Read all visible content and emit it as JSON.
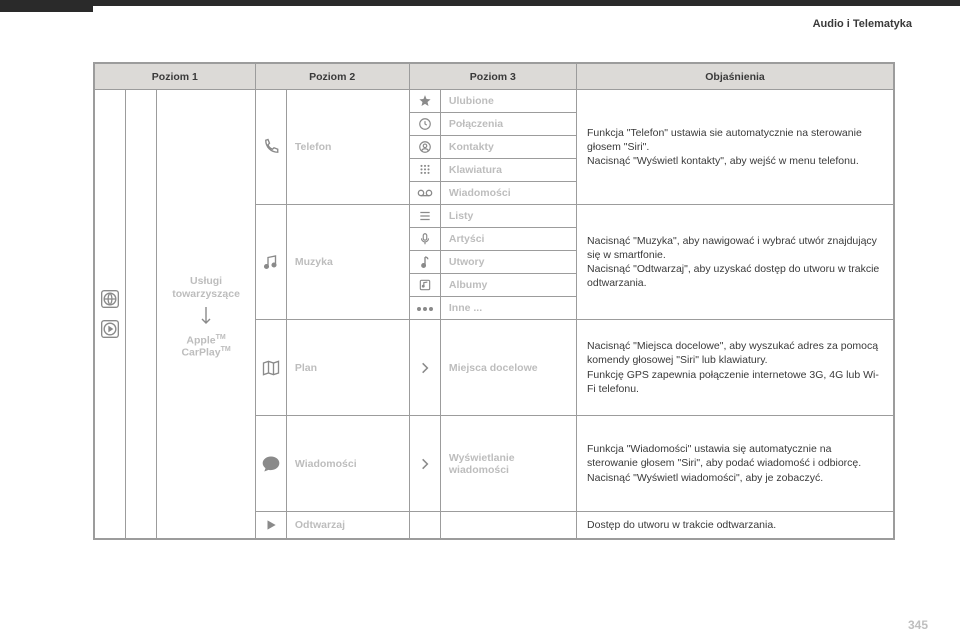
{
  "header": {
    "category": "Audio i Telematyka"
  },
  "columns": [
    "Poziom 1",
    "Poziom 2",
    "Poziom 3",
    "Objaśnienia"
  ],
  "level1": {
    "label_top": "Usługi towarzyszące",
    "label_bottom_pre": "Apple",
    "label_bottom_post": " CarPlay",
    "tm": "TM"
  },
  "sections": {
    "telefon": {
      "label": "Telefon",
      "items": [
        {
          "icon": "star",
          "label": "Ulubione"
        },
        {
          "icon": "clock",
          "label": "Połączenia"
        },
        {
          "icon": "contact",
          "label": "Kontakty"
        },
        {
          "icon": "keypad",
          "label": "Klawiatura"
        },
        {
          "icon": "tape",
          "label": "Wiadomości"
        }
      ],
      "desc": "Funkcja \"Telefon\" ustawia sie automatycznie na sterowanie głosem \"Siri\".\nNacisnąć \"Wyświetl kontakty\", aby wejść w menu telefonu."
    },
    "muzyka": {
      "label": "Muzyka",
      "items": [
        {
          "icon": "list",
          "label": "Listy"
        },
        {
          "icon": "mic",
          "label": "Artyści"
        },
        {
          "icon": "note",
          "label": "Utwory"
        },
        {
          "icon": "album",
          "label": "Albumy"
        },
        {
          "icon": "dots",
          "label": "Inne ..."
        }
      ],
      "desc": "Nacisnąć \"Muzyka\", aby nawigować i wybrać utwór znajdujący się w smartfonie.\nNacisnąć \"Odtwarzaj\", aby uzyskać dostęp do utworu w trakcie odtwarzania."
    },
    "plan": {
      "label": "Plan",
      "item": {
        "icon": "chevron",
        "label": "Miejsca docelowe"
      },
      "desc": "Nacisnąć \"Miejsca docelowe\", aby wyszukać adres za pomocą komendy głosowej \"Siri\" lub klawiatury.\nFunkcję GPS zapewnia połączenie internetowe 3G, 4G lub Wi-Fi telefonu."
    },
    "wiadomosci": {
      "label": "Wiadomości",
      "item": {
        "icon": "chevron",
        "label": "Wyświetlanie wiadomości"
      },
      "desc": "Funkcja \"Wiadomości\" ustawia się automatycznie na sterowanie głosem \"Siri\", aby podać wiadomość i odbiorcę.\nNacisnąć \"Wyświetl wiadomości\", aby je zobaczyć."
    },
    "odtwarzaj": {
      "label": "Odtwarzaj",
      "desc": "Dostęp do utworu w trakcie odtwarzania."
    }
  },
  "page_number": "345",
  "colors": {
    "border": "#9c9c9c",
    "header_bg": "#dcdad7",
    "ghost_text": "#bdbdbd",
    "body_text": "#3a3a3a",
    "icon_stroke": "#8a8a8a"
  }
}
